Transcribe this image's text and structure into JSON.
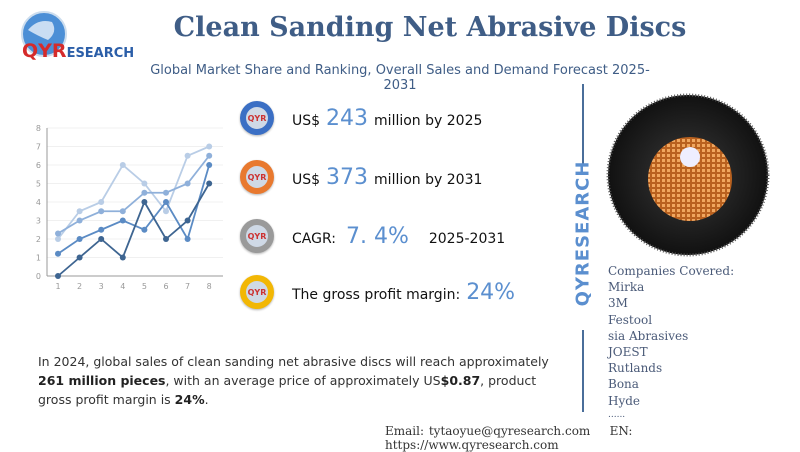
{
  "logo": {
    "text_qy": "QY",
    "text_r": "R",
    "text_rest": "ESEARCH"
  },
  "header": {
    "title": "Clean Sanding Net Abrasive Discs",
    "subtitle": "Global Market Share and Ranking, Overall Sales and Demand Forecast 2025-2031"
  },
  "stats": [
    {
      "prefix": "US$",
      "value": "243",
      "suffix": "million by 2025",
      "color": "#3b6fc4"
    },
    {
      "prefix": "US$",
      "value": "373",
      "suffix": "million by 2031",
      "color": "#e8792f"
    },
    {
      "prefix": "CAGR:",
      "value": "7. 4%",
      "suffix": "2025-2031",
      "color": "#9a9a9a"
    },
    {
      "prefix": "The gross profit margin:",
      "value": "24%",
      "suffix": "",
      "color": "#f2b705"
    }
  ],
  "paragraph": {
    "p1": "In 2024, global sales of clean sanding net abrasive discs will reach approximately ",
    "b1": "261 million pieces",
    "p2": ", with an average price of approximately US",
    "b2": "$0.87",
    "p3": ", product gross profit margin is ",
    "b3": "24%",
    "p4": "."
  },
  "side": {
    "vertical_brand": "QYRESEARCH",
    "companies_title": "Companies Covered:",
    "companies": [
      "Mirka",
      "3M",
      "Festool",
      "sia Abrasives",
      "JOEST",
      "Rutlands",
      "Bona",
      "Hyde",
      "......"
    ]
  },
  "footer": {
    "email_label": "Email:",
    "email": "tytaoyue@qyresearch.com",
    "en_label": "EN:",
    "url": "https://www.qyresearch.com"
  },
  "chart_data": {
    "type": "line",
    "categories": [
      "1",
      "2",
      "3",
      "4",
      "5",
      "6",
      "7",
      "8"
    ],
    "ylim": [
      0,
      8
    ],
    "yticks": [
      "0",
      "1",
      "2",
      "3",
      "4",
      "5",
      "6",
      "7",
      "8"
    ],
    "grid": true,
    "series": [
      {
        "values": [
          2,
          3.5,
          4,
          6,
          5,
          3.5,
          6.5,
          7
        ],
        "color": "#b9cde6"
      },
      {
        "values": [
          2.3,
          3,
          3.5,
          3.5,
          4.5,
          4.5,
          5,
          6.5
        ],
        "color": "#8fb0da"
      },
      {
        "values": [
          1.2,
          2,
          2.5,
          3,
          2.5,
          4,
          2,
          6
        ],
        "color": "#5b8bc4"
      },
      {
        "values": [
          0,
          1,
          2,
          1,
          4,
          2,
          3,
          5
        ],
        "color": "#3e6591"
      }
    ]
  }
}
